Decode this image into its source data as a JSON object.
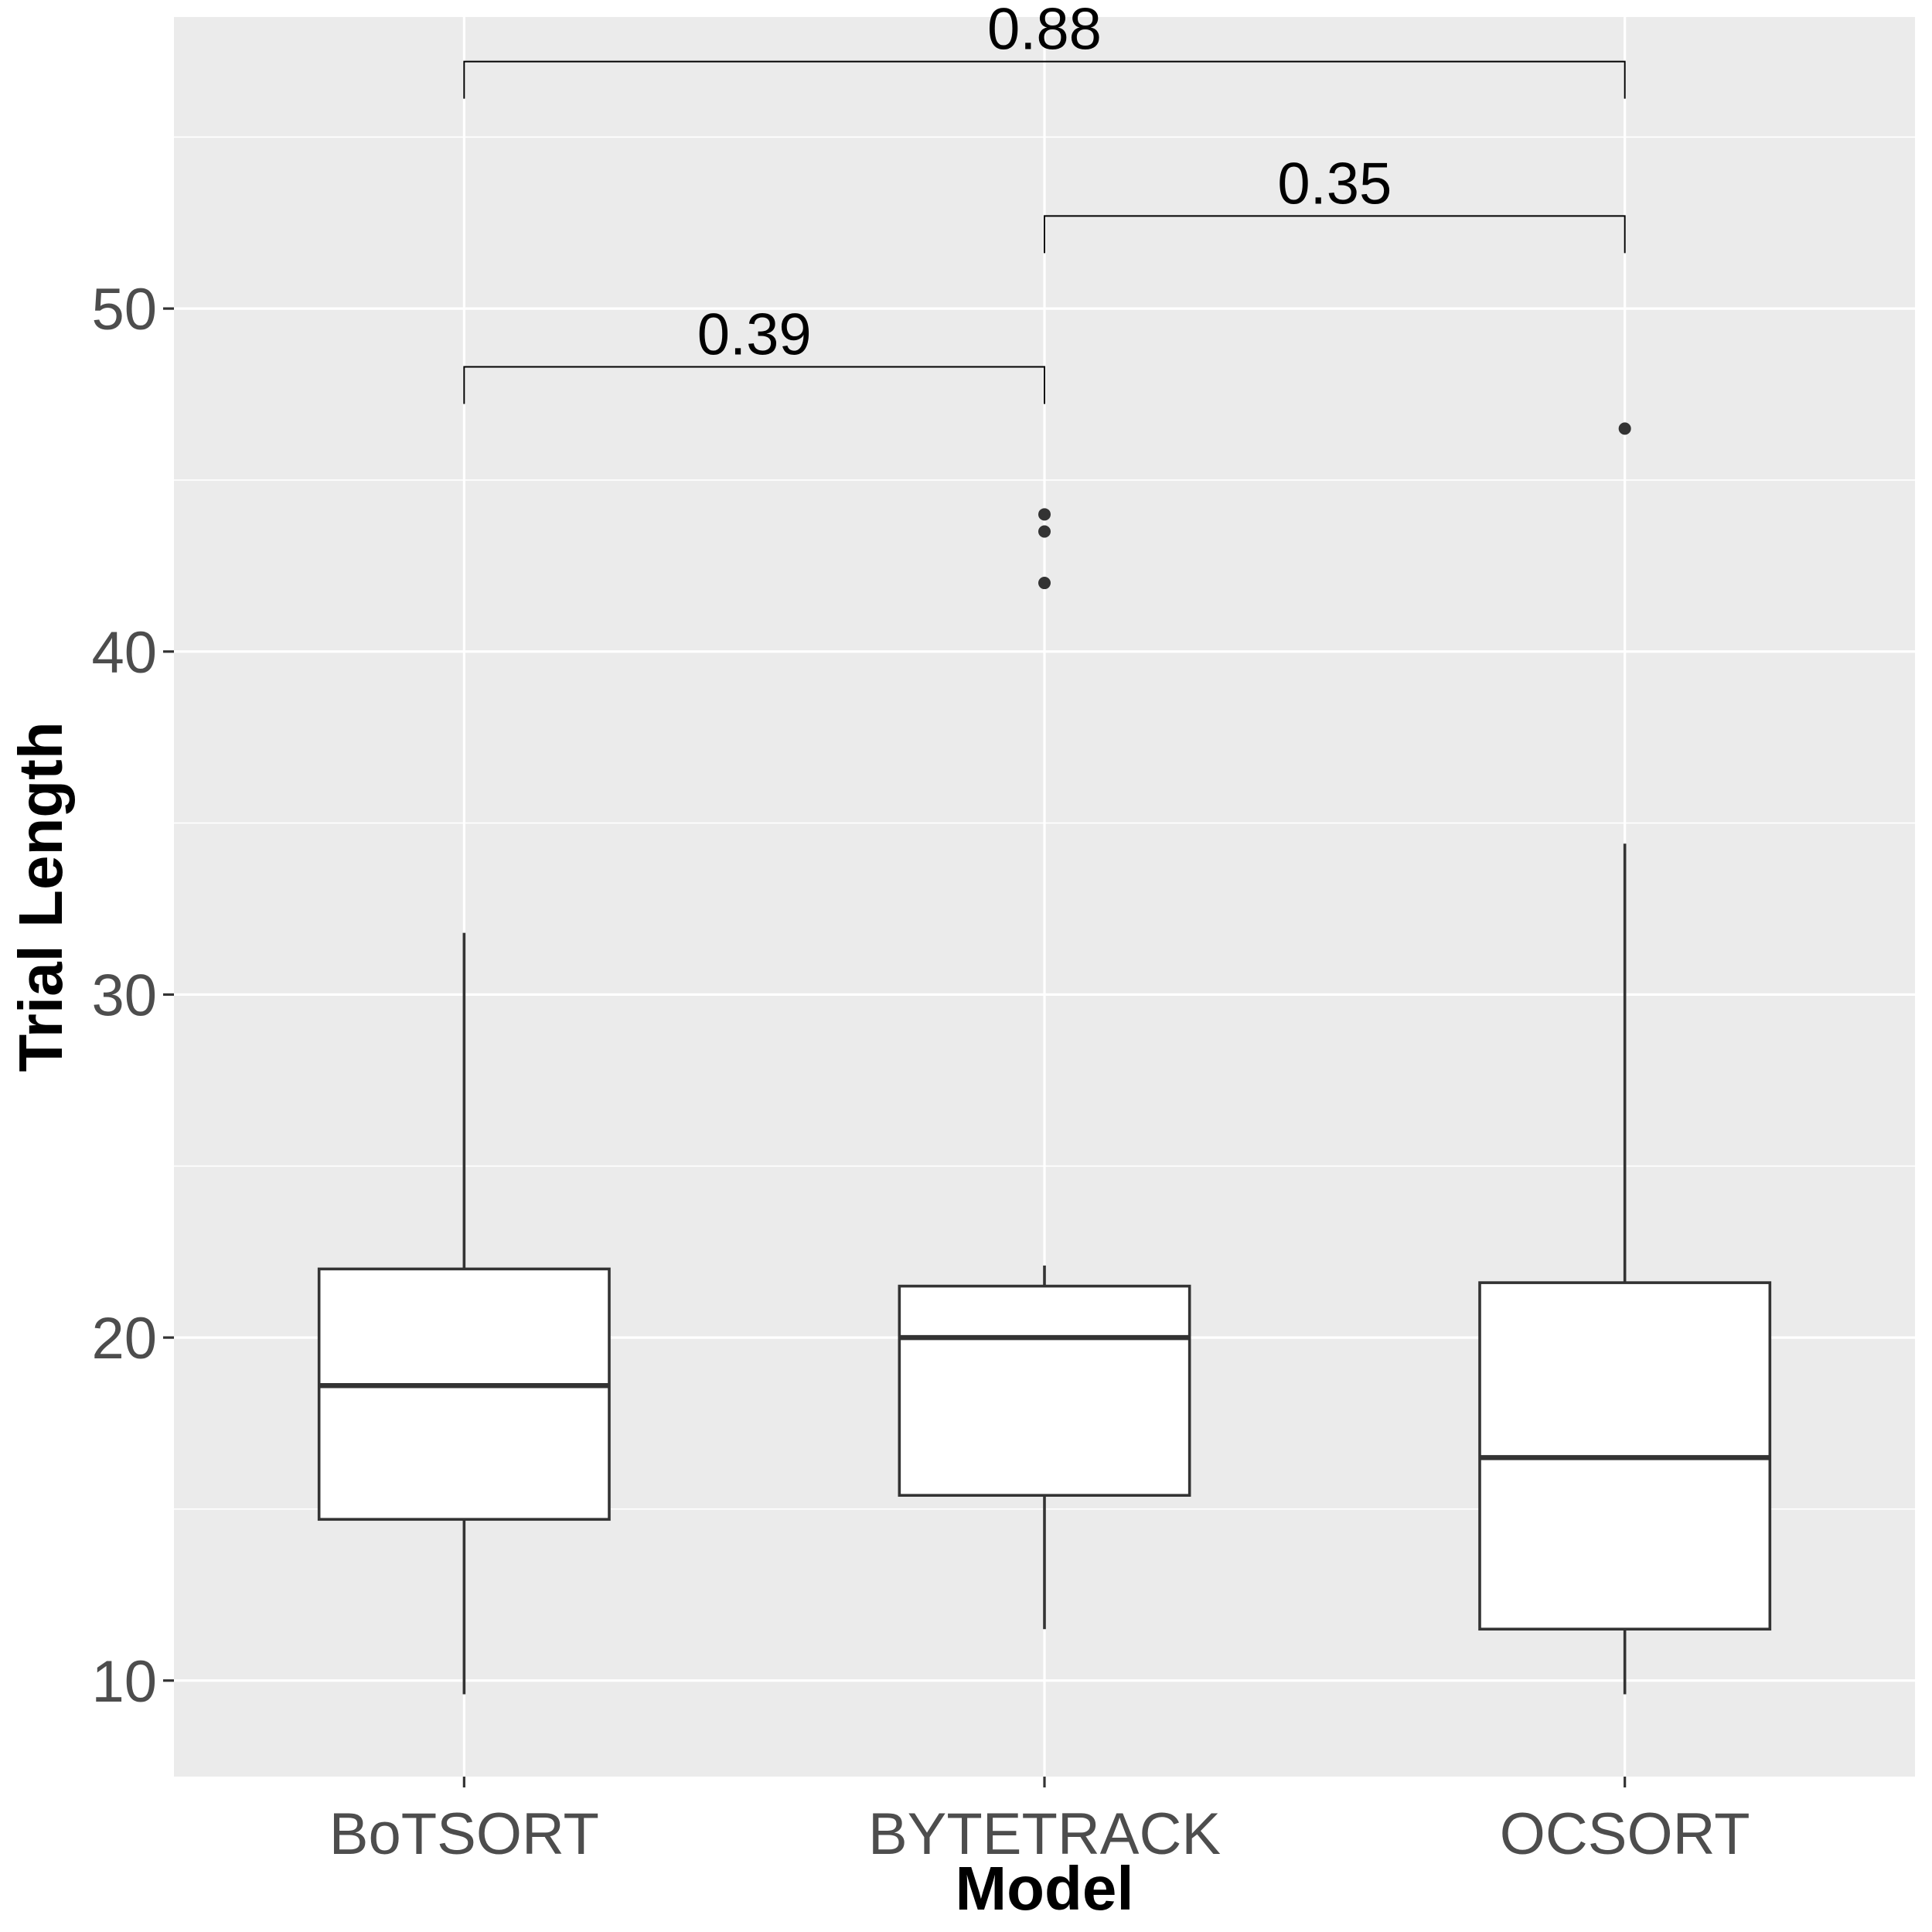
{
  "chart_data": {
    "type": "boxplot",
    "title": "",
    "xlabel": "Model",
    "ylabel": "Trial Length",
    "ylim": [
      7.2,
      58.5
    ],
    "yticks": [
      10,
      20,
      30,
      40,
      50
    ],
    "grid": true,
    "legend": "none",
    "colors": {
      "panel": "#ebebeb",
      "grid": "#ffffff",
      "box_fill": "#ffffff",
      "box_stroke": "#333333",
      "tick_text": "#4d4d4d",
      "title_text": "#000000"
    },
    "categories": [
      "BoTSORT",
      "BYTETRACK",
      "OCSORT"
    ],
    "boxes": [
      {
        "category": "BoTSORT",
        "whisker_low": 9.6,
        "q1": 14.7,
        "median": 18.6,
        "q3": 22.0,
        "whisker_high": 31.8,
        "outliers": []
      },
      {
        "category": "BYTETRACK",
        "whisker_low": 11.5,
        "q1": 15.4,
        "median": 20.0,
        "q3": 21.5,
        "whisker_high": 22.1,
        "outliers": [
          42.0,
          43.5,
          44.0
        ]
      },
      {
        "category": "OCSORT",
        "whisker_low": 9.6,
        "q1": 11.5,
        "median": 16.5,
        "q3": 21.6,
        "whisker_high": 34.4,
        "outliers": [
          46.5
        ]
      }
    ],
    "comparisons": [
      {
        "from": "BoTSORT",
        "to": "BYTETRACK",
        "y": 48.3,
        "label": "0.39"
      },
      {
        "from": "BYTETRACK",
        "to": "OCSORT",
        "y": 52.7,
        "label": "0.35"
      },
      {
        "from": "BoTSORT",
        "to": "OCSORT",
        "y": 57.2,
        "label": "0.88"
      }
    ]
  }
}
